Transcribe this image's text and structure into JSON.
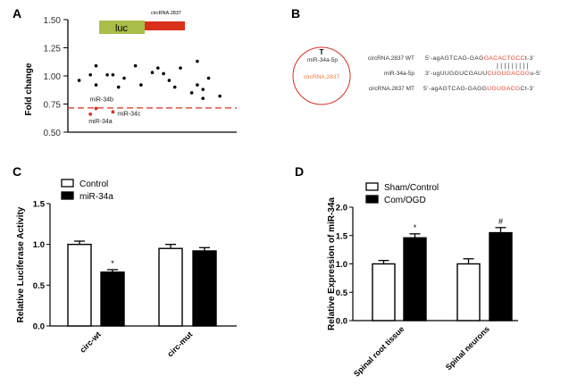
{
  "colors": {
    "red": "#d9301c",
    "orange": "#f07a3a",
    "luc": "#a9bd4a",
    "black": "#000000",
    "seq_red": "#e8402c"
  },
  "panel_b": {
    "label": "B",
    "circle_top": "T",
    "circle_mirna": "miR-34a-5p",
    "circle_circ": "circRNA.2837",
    "rows": [
      {
        "name": "circRNA.2837 WT",
        "prefix": "5’-agAGTCAG-GAG",
        "highlight": "GACACTGCC",
        "suffix": "t-3’"
      },
      {
        "name": "miR-34a-5p",
        "prefix": "3’-ugUUGGUCGAUU",
        "highlight": "CUGUGACGG",
        "suffix": "u-5’"
      },
      {
        "name": "circRNA.2837 MT",
        "prefix": "5’-agAGTCAG-GAGG",
        "highlight": "UGUGACG",
        "suffix": "Ct-3’"
      }
    ],
    "pairing": "|||||||||"
  },
  "chart_data": [
    {
      "panel": "A",
      "type": "scatter",
      "ylabel": "Fold    change",
      "ylim": [
        0.5,
        1.5
      ],
      "yticks": [
        "0.50",
        "0.75",
        "1.00",
        "1.25",
        "1.50"
      ],
      "xlim": [
        0,
        30
      ],
      "construct": {
        "luc_label": "luc",
        "circ_label": "circRNA.2837"
      },
      "threshold": 0.715,
      "points": [
        {
          "x": 2,
          "y": 0.96
        },
        {
          "x": 4,
          "y": 1.01
        },
        {
          "x": 5,
          "y": 1.09
        },
        {
          "x": 5,
          "y": 0.92
        },
        {
          "x": 7,
          "y": 1.01
        },
        {
          "x": 8,
          "y": 1.01
        },
        {
          "x": 9,
          "y": 0.9
        },
        {
          "x": 10,
          "y": 0.98
        },
        {
          "x": 12,
          "y": 1.09
        },
        {
          "x": 13,
          "y": 0.92
        },
        {
          "x": 15,
          "y": 1.03
        },
        {
          "x": 16,
          "y": 1.07
        },
        {
          "x": 17,
          "y": 1.02
        },
        {
          "x": 18,
          "y": 0.96
        },
        {
          "x": 19,
          "y": 0.9
        },
        {
          "x": 20,
          "y": 1.07
        },
        {
          "x": 22,
          "y": 0.85
        },
        {
          "x": 23,
          "y": 1.13
        },
        {
          "x": 23,
          "y": 0.92
        },
        {
          "x": 24,
          "y": 0.88
        },
        {
          "x": 24,
          "y": 0.8
        },
        {
          "x": 25,
          "y": 0.98
        },
        {
          "x": 27,
          "y": 0.82
        }
      ],
      "highlighted": [
        {
          "label": "miR-34b",
          "x": 5,
          "y": 0.71
        },
        {
          "label": "miR-34a",
          "x": 4,
          "y": 0.66
        },
        {
          "label": "miR-34c",
          "x": 8,
          "y": 0.68
        }
      ]
    },
    {
      "panel": "C",
      "type": "bar",
      "ylabel": "Relative Luciferase Activity",
      "ylim": [
        0,
        1.5
      ],
      "yticks": [
        "0.0",
        "0.5",
        "1.0",
        "1.5"
      ],
      "categories": [
        "circ-wt",
        "circ-mut"
      ],
      "series": [
        {
          "name": "Control",
          "values": [
            1.0,
            0.95
          ],
          "errors": [
            0.04,
            0.05
          ],
          "fill": "#ffffff"
        },
        {
          "name": "miR-34a",
          "values": [
            0.66,
            0.92
          ],
          "errors": [
            0.03,
            0.04
          ],
          "fill": "#000000"
        }
      ],
      "annotations": [
        {
          "series": 1,
          "category": 0,
          "text": "*"
        }
      ],
      "legend": "top-left"
    },
    {
      "panel": "D",
      "type": "bar",
      "ylabel": "Relative Expression of miR-34a",
      "ylim": [
        0,
        2.0
      ],
      "yticks": [
        "0.0",
        "0.5",
        "1.0",
        "1.5",
        "2.0"
      ],
      "categories": [
        "Spinal root tissue",
        "Spinal neurons"
      ],
      "series": [
        {
          "name": "Sham/Control",
          "values": [
            1.0,
            1.0
          ],
          "errors": [
            0.06,
            0.09
          ],
          "fill": "#ffffff"
        },
        {
          "name": "Com/OGD",
          "values": [
            1.46,
            1.55
          ],
          "errors": [
            0.07,
            0.09
          ],
          "fill": "#000000"
        }
      ],
      "annotations": [
        {
          "series": 1,
          "category": 0,
          "text": "*"
        },
        {
          "series": 1,
          "category": 1,
          "text": "#"
        }
      ],
      "legend": "top-left"
    }
  ]
}
